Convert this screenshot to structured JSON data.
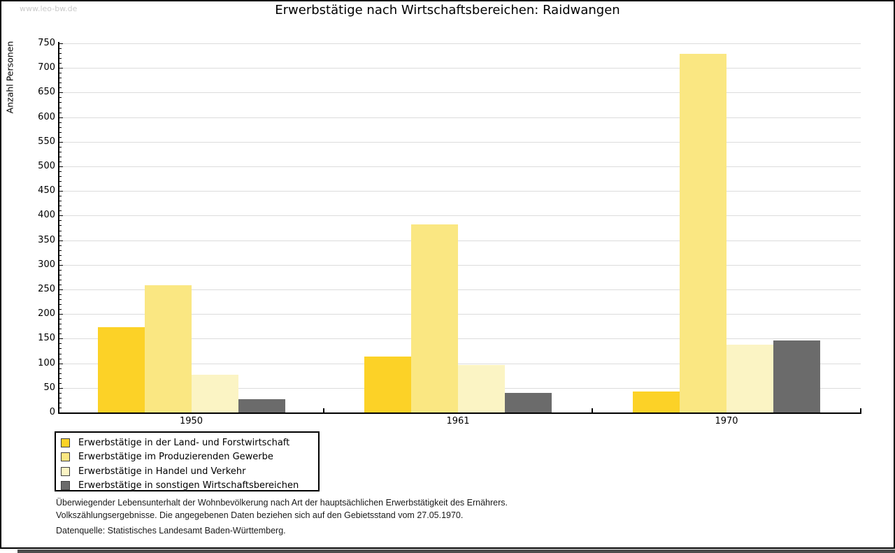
{
  "watermark": "www.leo-bw.de",
  "chart_data": {
    "type": "bar",
    "title": "Erwerbstätige nach Wirtschaftsbereichen: Raidwangen",
    "ylabel": "Anzahl Personen",
    "xlabel": "",
    "ylim": [
      0,
      750
    ],
    "ytick_step": 50,
    "ytick_minor_step": 10,
    "grid": "horizontal",
    "legend_position": "bottom-left",
    "categories": [
      "1950",
      "1961",
      "1970"
    ],
    "series": [
      {
        "name": "Erwerbstätige in der Land- und Forstwirtschaft",
        "color": "#fcd227",
        "values": [
          174,
          114,
          42
        ]
      },
      {
        "name": "Erwerbstätige im Produzierenden Gewerbe",
        "color": "#fae782",
        "values": [
          258,
          382,
          728
        ]
      },
      {
        "name": "Erwerbstätige in Handel und Verkehr",
        "color": "#fbf4c4",
        "values": [
          77,
          97,
          138
        ]
      },
      {
        "name": "Erwerbstätige in sonstigen Wirtschaftsbereichen",
        "color": "#6b6b6b",
        "values": [
          27,
          40,
          146
        ]
      }
    ]
  },
  "notes": {
    "line1": "Überwiegender Lebensunterhalt der Wohnbevölkerung nach Art der hauptsächlichen Erwerbstätigkeit des Ernährers.",
    "line2": "Volkszählungsergebnisse. Die angegebenen Daten beziehen sich auf den Gebietsstand vom 27.05.1970.",
    "source": "Datenquelle: Statistisches Landesamt Baden-Württemberg."
  }
}
